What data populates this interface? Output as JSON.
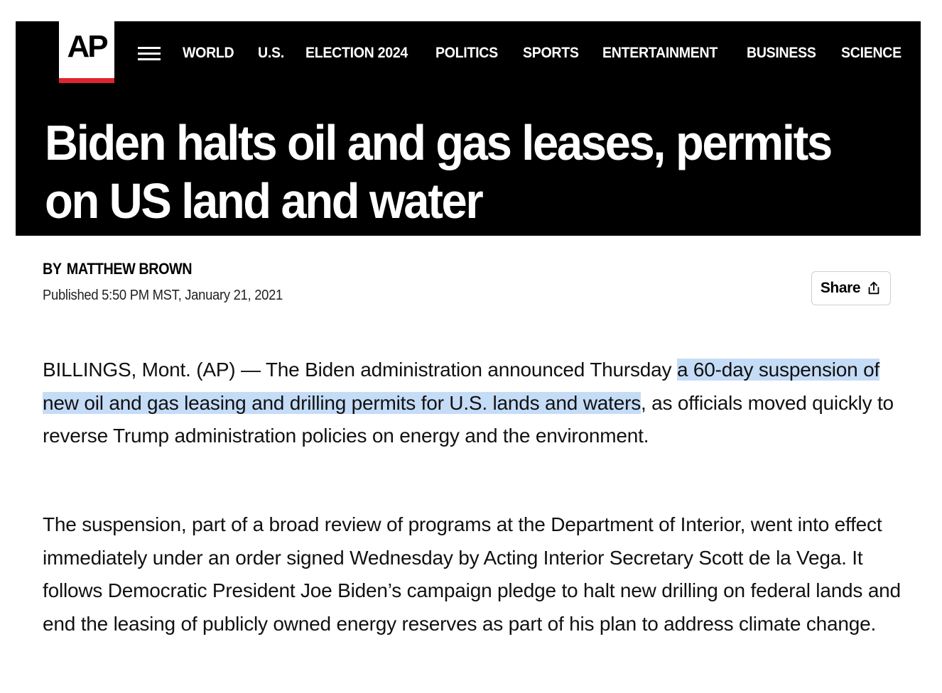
{
  "header": {
    "logo_text": "AP",
    "brand_red": "#e0262d",
    "menu_icon": "hamburger-menu-icon",
    "nav_items": [
      {
        "label": "WORLD"
      },
      {
        "label": "U.S."
      },
      {
        "label": "ELECTION 2024"
      },
      {
        "label": "POLITICS"
      },
      {
        "label": "SPORTS"
      },
      {
        "label": "ENTERTAINMENT"
      },
      {
        "label": "BUSINESS"
      },
      {
        "label": "SCIENCE"
      }
    ]
  },
  "article": {
    "headline": "Biden halts oil and gas leases, permits on US land and water",
    "byline_prefix": "BY",
    "author": "MATTHEW BROWN",
    "published": "Published 5:50 PM MST, January 21, 2021",
    "share_label": "Share",
    "share_icon": "share-upload-icon",
    "highlight_color": "#c5dcf7",
    "paragraphs": [
      {
        "before": "BILLINGS, Mont. (AP) — The Biden administration announced Thursday ",
        "highlighted": "a 60-day suspension of new oil and gas leasing and drilling permits for U.S. lands and waters",
        "after": ", as officials moved quickly to reverse Trump administration policies on energy and the environment."
      },
      {
        "text": "The suspension, part of a broad review of programs at the Department of Interior, went into effect immediately under an order signed Wednesday by Acting Interior Secretary Scott de la Vega. It follows Democratic President Joe Biden’s campaign pledge to halt new drilling on federal lands and end the leasing of publicly owned energy reserves as part of his plan to address climate change."
      }
    ]
  }
}
